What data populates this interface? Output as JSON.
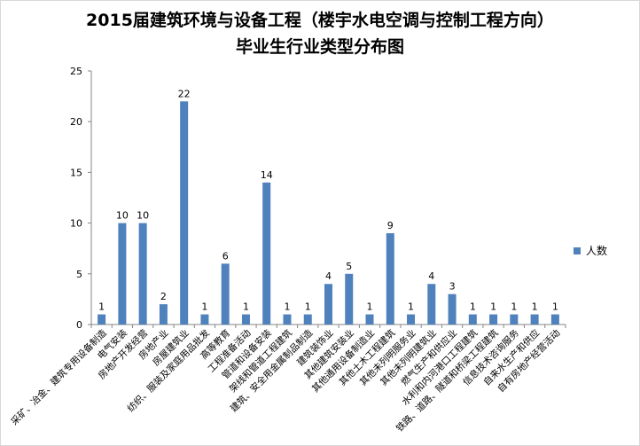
{
  "chart_data": {
    "type": "bar",
    "title": [
      "2015届建筑环境与设备工程（楼宇水电空调与控制工程方向）",
      "毕业生行业类型分布图"
    ],
    "categories": [
      "采矿、冶金、建筑专用设备制造",
      "电气安装",
      "房地产开发经营",
      "房地产业",
      "房屋建筑业",
      "纺织、服装及家庭用品批发",
      "高等教育",
      "工程准备活动",
      "管道和设备安装",
      "架线和管道工程建筑",
      "建筑、安全用金属制品制造",
      "建筑装饰业",
      "其他建筑安装业",
      "其他通用设备制造业",
      "其他土木工程建筑",
      "其他未列明服务业",
      "其他未列明建筑业",
      "燃气生产和供应业",
      "水利和内河港口工程建筑",
      "铁路、道路、隧道和桥梁工程建筑",
      "信息技术咨询服务",
      "自来水生产和供应",
      "自有房地产经营活动"
    ],
    "series": [
      {
        "name": "人数",
        "values": [
          1,
          10,
          10,
          2,
          22,
          1,
          6,
          1,
          14,
          1,
          1,
          4,
          5,
          1,
          9,
          1,
          4,
          3,
          1,
          1,
          1,
          1,
          1
        ]
      }
    ],
    "ylim": [
      0,
      25
    ],
    "yticks": [
      0,
      5,
      10,
      15,
      20,
      25
    ],
    "grid": false,
    "legend": "right",
    "bar_color": "#4f81bd"
  }
}
